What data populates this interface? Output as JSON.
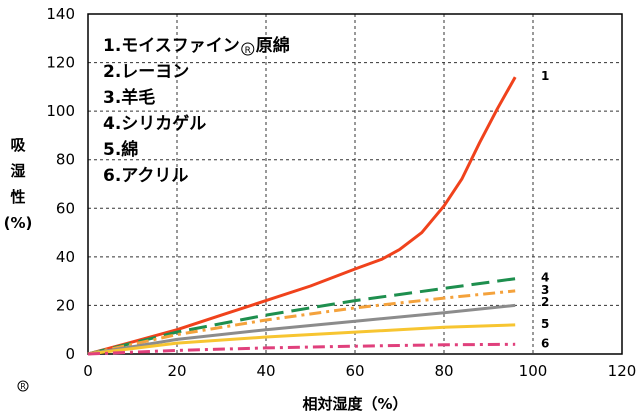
{
  "chart_data": {
    "type": "line",
    "xlabel": "相対湿度（%）",
    "ylabel_chars": [
      "吸",
      "湿",
      "性",
      "(%)"
    ],
    "xlim": [
      0,
      120
    ],
    "ylim": [
      0,
      140
    ],
    "x_ticks": [
      0,
      20,
      40,
      60,
      80,
      100,
      120
    ],
    "y_ticks": [
      0,
      20,
      40,
      60,
      80,
      100,
      120,
      140
    ],
    "grid": true,
    "legend_placement": "top-left",
    "legend_items": [
      {
        "number": "1.",
        "name": "モイスファイン",
        "mark": "R",
        "suffix": "原綿"
      },
      {
        "number": "2.",
        "name": "レーヨン",
        "mark": "",
        "suffix": ""
      },
      {
        "number": "3.",
        "name": "羊毛",
        "mark": "",
        "suffix": ""
      },
      {
        "number": "4.",
        "name": "シリカゲル",
        "mark": "",
        "suffix": ""
      },
      {
        "number": "5.",
        "name": "綿",
        "mark": "",
        "suffix": ""
      },
      {
        "number": "6.",
        "name": "アクリル",
        "mark": "",
        "suffix": ""
      }
    ],
    "series": [
      {
        "label": "1",
        "color": "#f0421c",
        "dash": "",
        "label_y": 114,
        "points": [
          [
            0,
            0
          ],
          [
            10,
            5
          ],
          [
            20,
            10
          ],
          [
            30,
            16
          ],
          [
            40,
            22
          ],
          [
            50,
            28
          ],
          [
            60,
            35
          ],
          [
            66,
            39
          ],
          [
            70,
            43
          ],
          [
            75,
            50
          ],
          [
            80,
            61
          ],
          [
            84,
            72
          ],
          [
            88,
            87
          ],
          [
            92,
            101
          ],
          [
            96,
            114
          ]
        ]
      },
      {
        "label": "4",
        "color": "#1e8f4e",
        "dash": "18,8",
        "label_y": 31,
        "points": [
          [
            0,
            0
          ],
          [
            20,
            9
          ],
          [
            40,
            16
          ],
          [
            60,
            22
          ],
          [
            80,
            27
          ],
          [
            96,
            31
          ]
        ]
      },
      {
        "label": "3",
        "color": "#f4a23c",
        "dash": "12,5,3,5",
        "label_y": 26,
        "points": [
          [
            0,
            0
          ],
          [
            20,
            8
          ],
          [
            40,
            14
          ],
          [
            60,
            19
          ],
          [
            80,
            23
          ],
          [
            96,
            26
          ]
        ]
      },
      {
        "label": "2",
        "color": "#8c8c8c",
        "dash": "",
        "label_y": 21,
        "points": [
          [
            0,
            0
          ],
          [
            20,
            6
          ],
          [
            40,
            10
          ],
          [
            60,
            13.5
          ],
          [
            80,
            17
          ],
          [
            96,
            20
          ]
        ]
      },
      {
        "label": "5",
        "color": "#f7c531",
        "dash": "",
        "label_y": 12,
        "points": [
          [
            0,
            0
          ],
          [
            20,
            4.5
          ],
          [
            40,
            7
          ],
          [
            60,
            9
          ],
          [
            80,
            11
          ],
          [
            96,
            12
          ]
        ]
      },
      {
        "label": "6",
        "color": "#e0407c",
        "dash": "12,5,3,5",
        "label_y": 4,
        "points": [
          [
            0,
            0
          ],
          [
            20,
            1.5
          ],
          [
            40,
            2.5
          ],
          [
            60,
            3.2
          ],
          [
            80,
            3.8
          ],
          [
            96,
            4
          ]
        ]
      }
    ]
  },
  "footnote_mark": "R"
}
